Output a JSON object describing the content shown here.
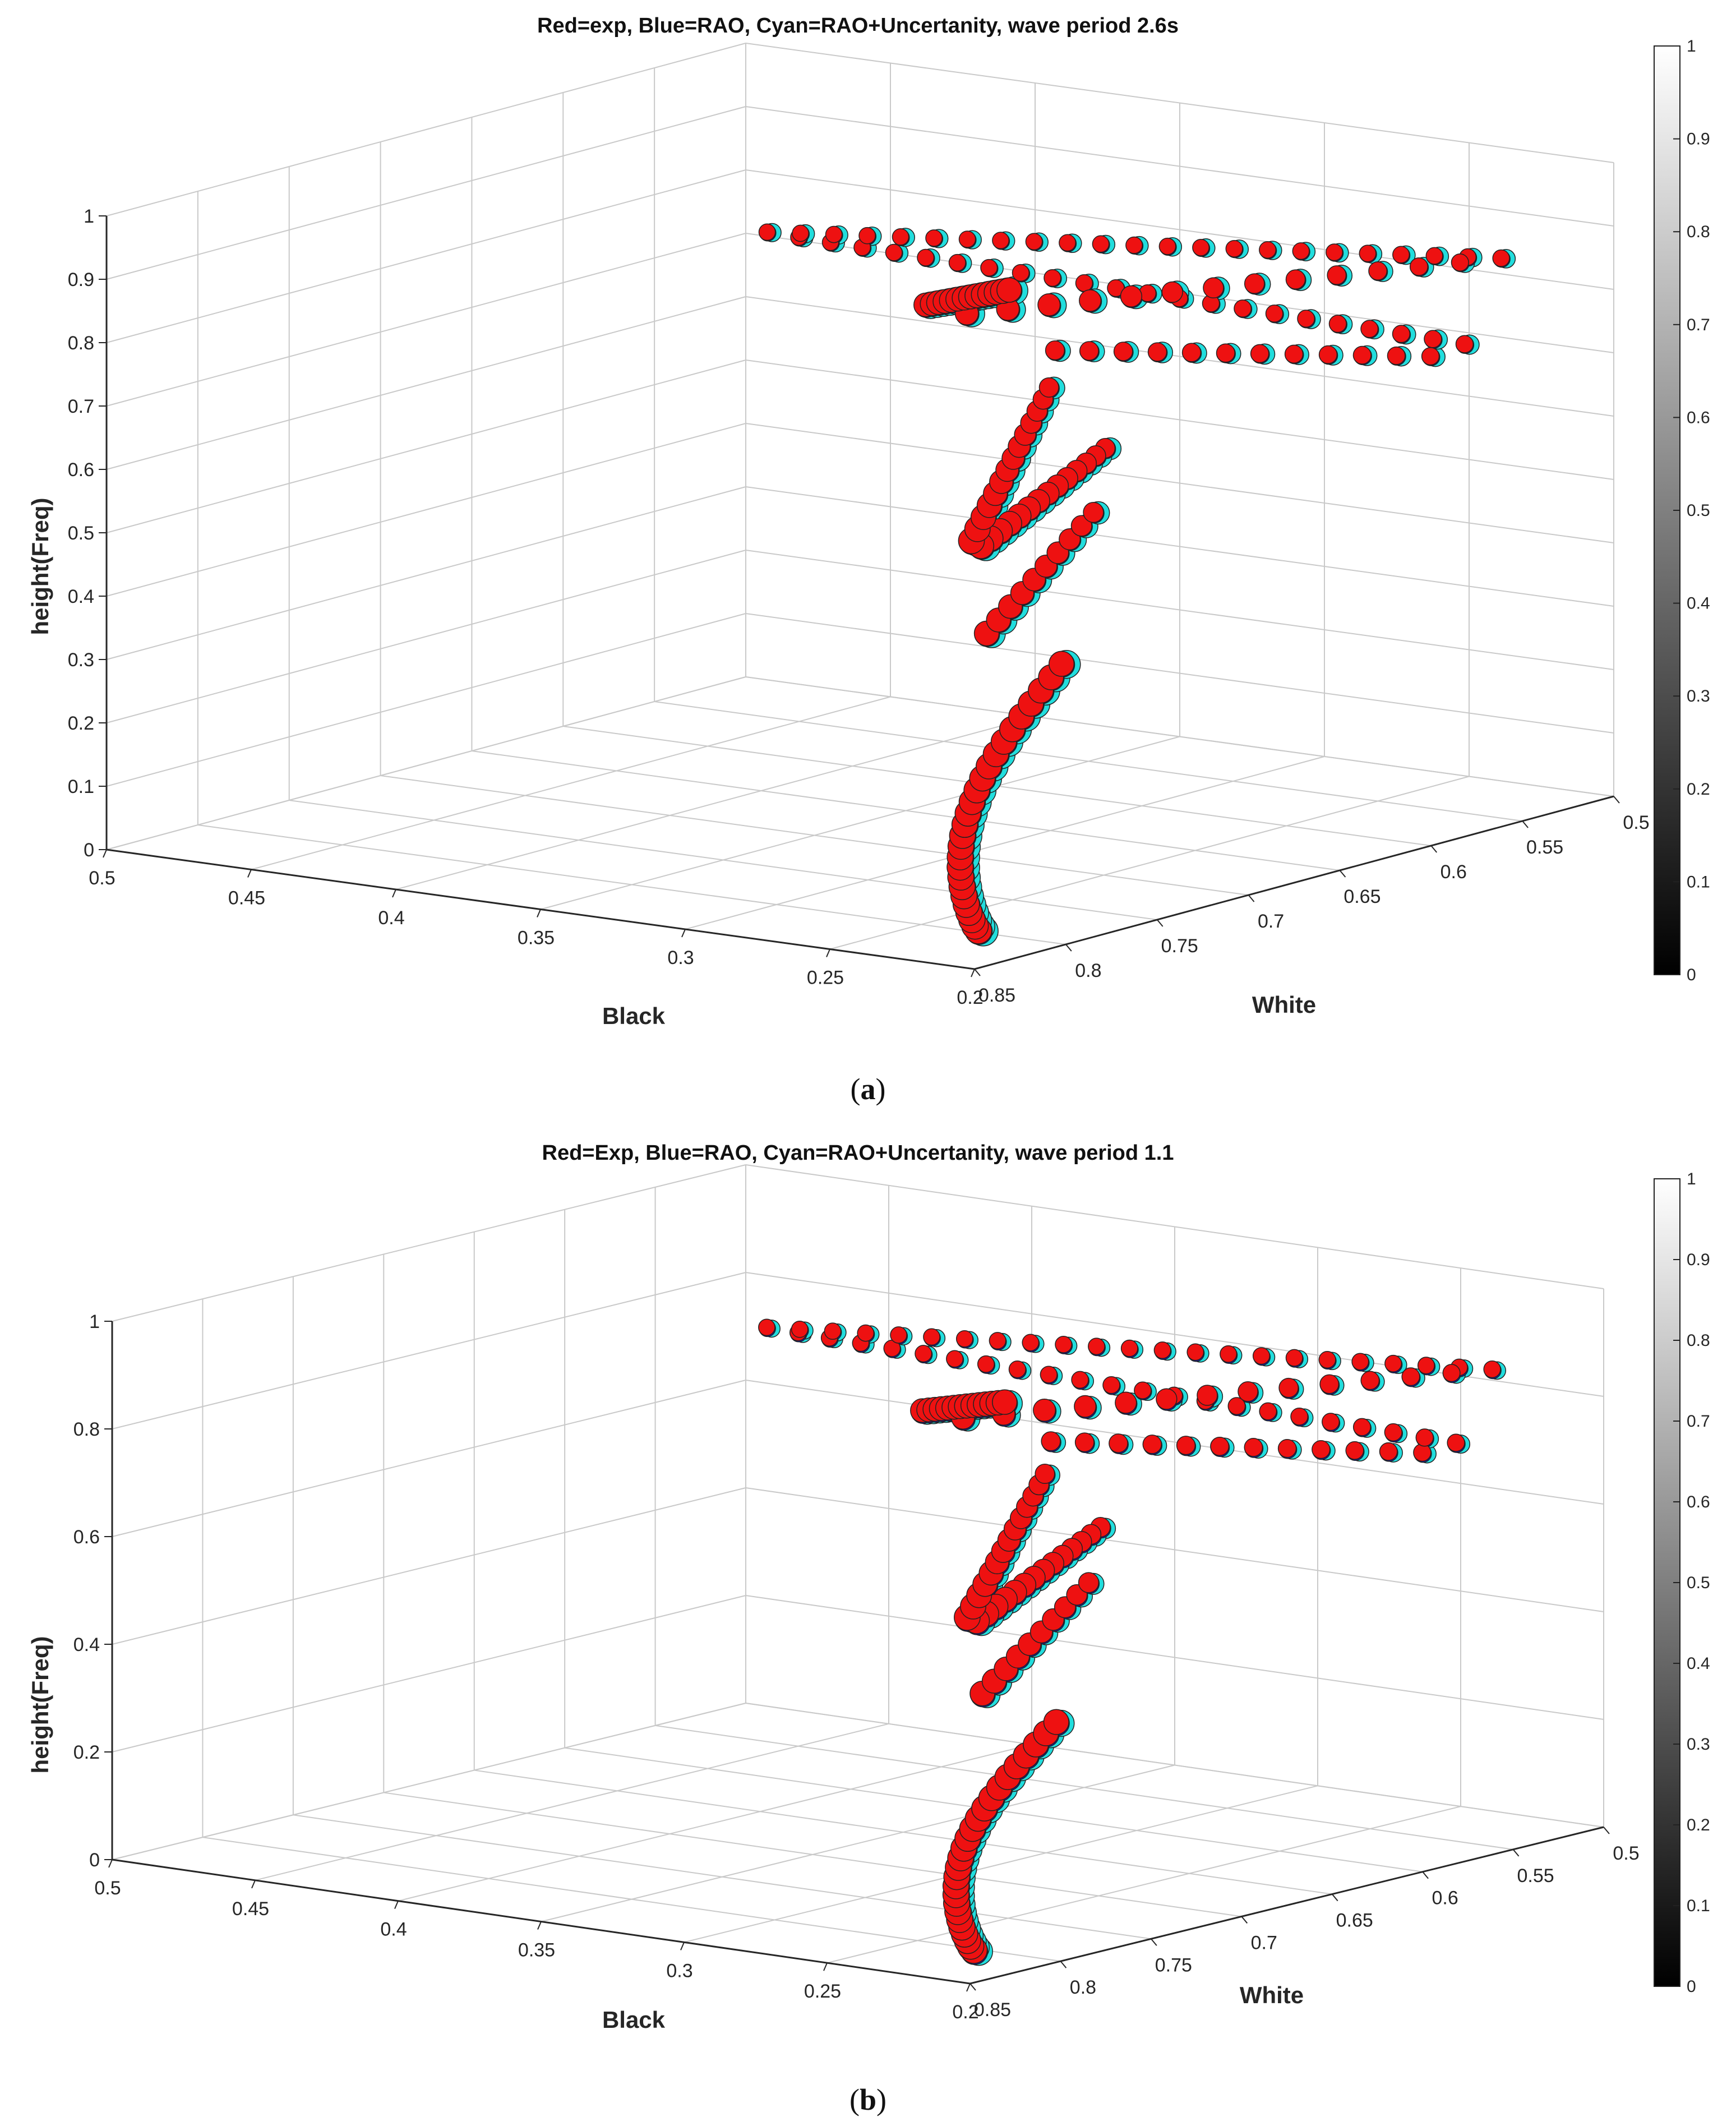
{
  "chart_data": [
    {
      "panel": "a",
      "type": "scatter",
      "title": "Red=exp, Blue=RAO, Cyan=RAO+Uncertanity, wave period 2.6s",
      "caption_label": "(a)",
      "caption_open": "(",
      "caption_letter": "a",
      "caption_close": ")",
      "xlabel": "Black",
      "ylabel": "White",
      "zlabel": "height(Freq)",
      "xlim": [
        0.2,
        0.5
      ],
      "ylim": [
        0.5,
        0.85
      ],
      "zlim": [
        0,
        1
      ],
      "xticks": [
        "0.5",
        "0.45",
        "0.4",
        "0.35",
        "0.3",
        "0.25",
        "0.2"
      ],
      "yticks": [
        "0.85",
        "0.8",
        "0.75",
        "0.7",
        "0.65",
        "0.6",
        "0.55",
        "0.5"
      ],
      "zticks": [
        "0",
        "0.1",
        "0.2",
        "0.3",
        "0.4",
        "0.5",
        "0.6",
        "0.7",
        "0.8",
        "0.9",
        "1"
      ],
      "grid": true,
      "colorbar": {
        "ticks": [
          "0",
          "0.1",
          "0.2",
          "0.3",
          "0.4",
          "0.5",
          "0.6",
          "0.7",
          "0.8",
          "0.9",
          "1"
        ],
        "colormap": "gray"
      },
      "series": [
        {
          "name": "exp",
          "color": "#ee1111",
          "marker_scale": 1.0
        },
        {
          "name": "RAO",
          "color": "#1111dd",
          "marker_scale": 1.0
        },
        {
          "name": "RAO+Uncertanity",
          "color": "#22dddd",
          "marker_scale": 1.12
        }
      ]
    },
    {
      "panel": "b",
      "type": "scatter",
      "title": "Red=Exp, Blue=RAO, Cyan=RAO+Uncertanity, wave period 1.1",
      "caption_label": "(b)",
      "caption_open": "(",
      "caption_letter": "b",
      "caption_close": ")",
      "xlabel": "Black",
      "ylabel": "White",
      "zlabel": "height(Freq)",
      "xlim": [
        0.2,
        0.5
      ],
      "ylim": [
        0.5,
        0.85
      ],
      "zlim": [
        0,
        1
      ],
      "xticks": [
        "0.5",
        "0.45",
        "0.4",
        "0.35",
        "0.3",
        "0.25",
        "0.2"
      ],
      "yticks": [
        "0.85",
        "0.8",
        "0.75",
        "0.7",
        "0.65",
        "0.6",
        "0.55",
        "0.5"
      ],
      "zticks": [
        "0",
        "0.2",
        "0.4",
        "0.6",
        "0.8",
        "1"
      ],
      "grid": true,
      "colorbar": {
        "ticks": [
          "0",
          "0.1",
          "0.2",
          "0.3",
          "0.4",
          "0.5",
          "0.6",
          "0.7",
          "0.8",
          "0.9",
          "1"
        ],
        "colormap": "gray"
      },
      "series": [
        {
          "name": "Exp",
          "color": "#ee1111",
          "marker_scale": 1.0
        },
        {
          "name": "RAO",
          "color": "#1111dd",
          "marker_scale": 1.0
        },
        {
          "name": "RAO+Uncertanity",
          "color": "#22dddd",
          "marker_scale": 1.05
        }
      ]
    }
  ]
}
